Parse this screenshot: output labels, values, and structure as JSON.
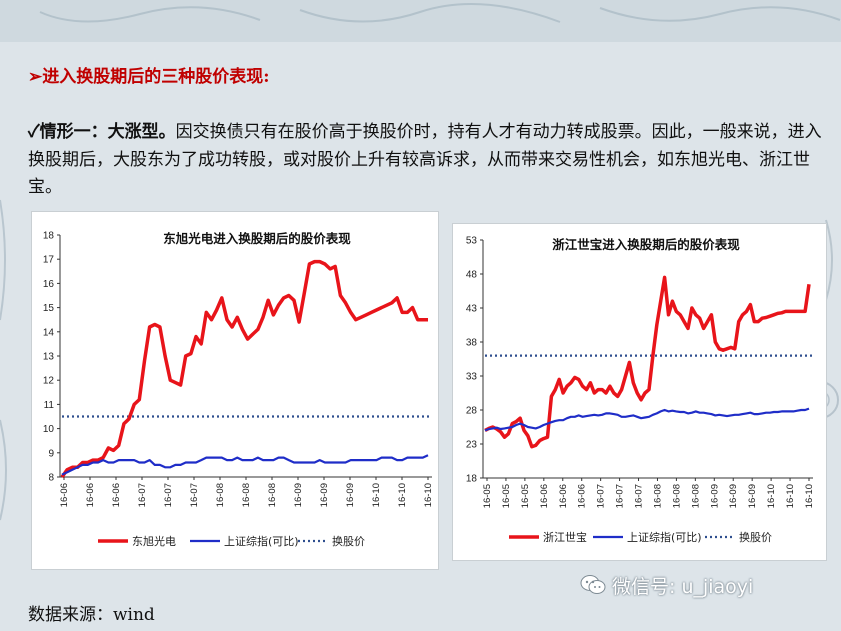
{
  "heading": "进入换股期后的三种股价表现:",
  "paragraph": {
    "check": "✓",
    "bold_lead": "情形一：大涨型。",
    "text": "因交换债只有在股价高于换股价时，持有人才有动力转成股票。因此，一般来说，进入换股期后，大股东为了成功转股，或对股价上升有较高诉求，从而带来交易性机会，如东旭光电、浙江世宝。"
  },
  "source": "数据来源：wind",
  "watermark": "微信号: u_jiaoyi",
  "colors": {
    "stock": "#e8141a",
    "index": "#1f2dc8",
    "conversion": "#2f4f8f",
    "heading": "#c00000"
  },
  "chart_data": [
    {
      "type": "line",
      "title": "东旭光电进入换股期后的股价表现",
      "x_tick_labels": [
        "16-06",
        "16-06",
        "16-06",
        "16-07",
        "16-07",
        "16-07",
        "16-08",
        "16-08",
        "16-08",
        "16-09",
        "16-09",
        "16-09",
        "16-10",
        "16-10",
        "16-10"
      ],
      "ylim": [
        8,
        18
      ],
      "yticks": [
        8,
        9,
        10,
        11,
        12,
        13,
        14,
        15,
        16,
        17,
        18
      ],
      "reference_line": {
        "name": "换股价",
        "value": 10.5
      },
      "series": [
        {
          "name": "东旭光电",
          "values": [
            8.0,
            8.3,
            8.4,
            8.4,
            8.6,
            8.6,
            8.7,
            8.7,
            8.8,
            9.2,
            9.1,
            9.3,
            10.2,
            10.4,
            11.0,
            11.2,
            12.8,
            14.2,
            14.3,
            14.2,
            13.0,
            12.0,
            11.9,
            11.8,
            13.0,
            13.1,
            13.8,
            13.5,
            14.8,
            14.5,
            14.9,
            15.4,
            14.5,
            14.2,
            14.6,
            14.1,
            13.7,
            13.9,
            14.1,
            14.6,
            15.3,
            14.7,
            15.1,
            15.4,
            15.5,
            15.3,
            14.4,
            15.6,
            16.8,
            16.9,
            16.9,
            16.8,
            16.6,
            16.7,
            15.5,
            15.2,
            14.8,
            14.5,
            14.6,
            14.7,
            14.8,
            14.9,
            15.0,
            15.1,
            15.2,
            15.4,
            14.8,
            14.8,
            15.0,
            14.5,
            14.5,
            14.5
          ]
        },
        {
          "name": "上证综指(可比)",
          "values": [
            8.1,
            8.2,
            8.3,
            8.4,
            8.5,
            8.5,
            8.6,
            8.6,
            8.7,
            8.6,
            8.6,
            8.7,
            8.7,
            8.7,
            8.7,
            8.6,
            8.6,
            8.7,
            8.5,
            8.5,
            8.4,
            8.4,
            8.5,
            8.5,
            8.6,
            8.6,
            8.6,
            8.7,
            8.8,
            8.8,
            8.8,
            8.8,
            8.7,
            8.7,
            8.8,
            8.7,
            8.7,
            8.7,
            8.8,
            8.7,
            8.7,
            8.7,
            8.8,
            8.8,
            8.7,
            8.6,
            8.6,
            8.6,
            8.6,
            8.6,
            8.7,
            8.6,
            8.6,
            8.6,
            8.6,
            8.6,
            8.7,
            8.7,
            8.7,
            8.7,
            8.7,
            8.7,
            8.8,
            8.8,
            8.8,
            8.7,
            8.7,
            8.8,
            8.8,
            8.8,
            8.8,
            8.9
          ]
        },
        {
          "name": "换股价",
          "values": []
        }
      ],
      "legend_position": "bottom"
    },
    {
      "type": "line",
      "title": "浙江世宝进入换股期后的股价表现",
      "x_tick_labels": [
        "16-05",
        "16-05",
        "16-05",
        "16-06",
        "16-06",
        "16-06",
        "16-07",
        "16-07",
        "16-07",
        "16-08",
        "16-08",
        "16-08",
        "16-09",
        "16-09",
        "16-09",
        "16-10",
        "16-10",
        "16-10"
      ],
      "ylim": [
        18,
        53
      ],
      "yticks": [
        18,
        23,
        28,
        33,
        38,
        43,
        48,
        53
      ],
      "reference_line": {
        "name": "换股价",
        "value": 36
      },
      "series": [
        {
          "name": "浙江世宝",
          "values": [
            25.0,
            25.3,
            25.5,
            25.2,
            24.8,
            24.0,
            24.5,
            26.0,
            26.3,
            26.8,
            25.0,
            24.2,
            22.6,
            22.8,
            23.5,
            23.8,
            24.0,
            30.0,
            31.0,
            32.5,
            30.5,
            31.5,
            32.0,
            32.8,
            32.5,
            31.5,
            31.0,
            32.0,
            30.5,
            31.0,
            31.0,
            30.5,
            31.5,
            30.5,
            30.0,
            31.0,
            33.0,
            35.0,
            32.0,
            30.5,
            29.5,
            30.5,
            31.0,
            36.0,
            40.5,
            44.0,
            47.5,
            42.0,
            44.0,
            42.5,
            42.0,
            41.0,
            40.0,
            43.0,
            42.0,
            41.5,
            40.0,
            41.0,
            42.0,
            38.0,
            37.0,
            36.8,
            37.0,
            37.2,
            37.0,
            41.0,
            42.0,
            42.5,
            43.5,
            41.0,
            41.0,
            41.5,
            41.6,
            41.8,
            42.0,
            42.2,
            42.3,
            42.5,
            42.5,
            42.5,
            42.5,
            42.5,
            42.5,
            46.5
          ]
        },
        {
          "name": "上证综指(可比)",
          "values": [
            25.0,
            25.2,
            25.3,
            25.4,
            25.2,
            25.3,
            25.4,
            25.5,
            25.8,
            26.0,
            25.8,
            25.5,
            25.4,
            25.3,
            25.5,
            25.8,
            26.0,
            26.2,
            26.4,
            26.5,
            26.5,
            26.8,
            27.0,
            27.0,
            27.2,
            27.0,
            27.1,
            27.2,
            27.3,
            27.2,
            27.3,
            27.5,
            27.5,
            27.4,
            27.3,
            27.0,
            27.0,
            27.1,
            27.2,
            27.0,
            26.8,
            26.9,
            27.0,
            27.3,
            27.5,
            27.8,
            28.0,
            27.8,
            27.9,
            27.8,
            27.7,
            27.7,
            27.5,
            27.6,
            27.8,
            27.6,
            27.6,
            27.5,
            27.4,
            27.2,
            27.3,
            27.2,
            27.1,
            27.2,
            27.3,
            27.3,
            27.4,
            27.5,
            27.6,
            27.4,
            27.4,
            27.5,
            27.6,
            27.6,
            27.7,
            27.7,
            27.8,
            27.8,
            27.8,
            27.8,
            27.9,
            28.0,
            28.0,
            28.2
          ]
        },
        {
          "name": "换股价",
          "values": []
        }
      ],
      "legend_position": "bottom"
    }
  ]
}
